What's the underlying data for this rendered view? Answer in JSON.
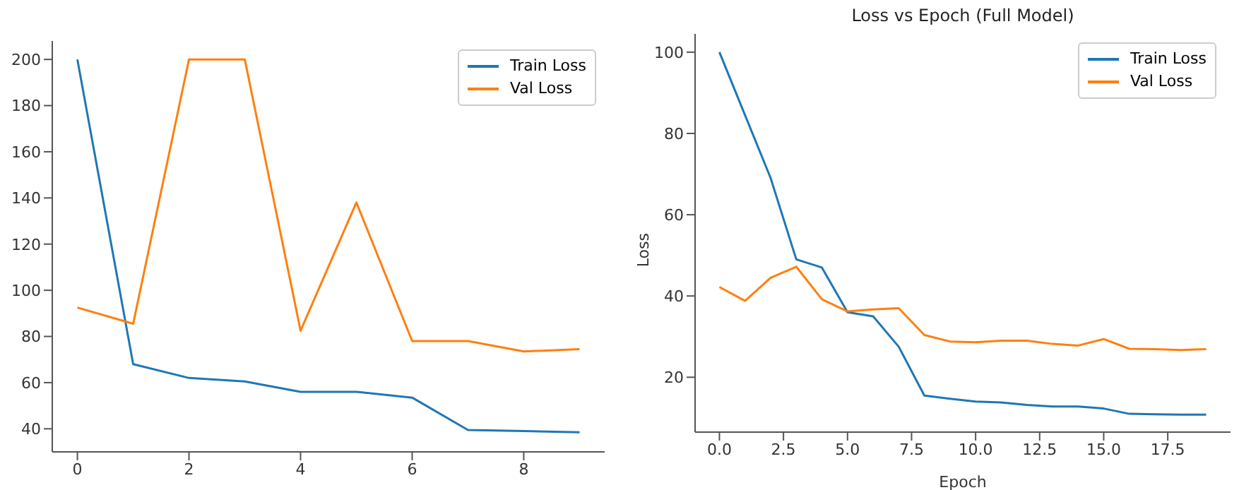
{
  "chart_data": [
    {
      "type": "line",
      "x": [
        0,
        1,
        2,
        3,
        4,
        5,
        6,
        7,
        8,
        9
      ],
      "xlim": [
        -0.45,
        9.45
      ],
      "xticks": [
        0,
        2,
        4,
        6,
        8
      ],
      "ylim": [
        30,
        208
      ],
      "yticks": [
        40,
        60,
        80,
        100,
        120,
        140,
        160,
        180,
        200
      ],
      "grid": false,
      "legend": "top right",
      "series": [
        {
          "name": "Train Loss",
          "color": "#1f77b4",
          "values": [
            200,
            68,
            62,
            60.5,
            56,
            56,
            53.5,
            39.5,
            39,
            38.5
          ]
        },
        {
          "name": "Val Loss",
          "color": "#ff7f0e",
          "values": [
            92.5,
            85.5,
            200,
            200,
            82.5,
            138,
            78,
            78,
            73.5,
            74.5
          ]
        }
      ]
    },
    {
      "type": "line",
      "title": "Loss vs Epoch (Full Model)",
      "xlabel": "Epoch",
      "ylabel": "Loss",
      "x": [
        0,
        1,
        2,
        3,
        4,
        5,
        6,
        7,
        8,
        9,
        10,
        11,
        12,
        13,
        14,
        15,
        16,
        17,
        18,
        19
      ],
      "xlim": [
        -0.95,
        19.95
      ],
      "xticks": [
        {
          "value": 0,
          "label": "0.0"
        },
        {
          "value": 2.5,
          "label": "2.5"
        },
        {
          "value": 5,
          "label": "5.0"
        },
        {
          "value": 7.5,
          "label": "7.5"
        },
        {
          "value": 10,
          "label": "10.0"
        },
        {
          "value": 12.5,
          "label": "12.5"
        },
        {
          "value": 15,
          "label": "15.0"
        },
        {
          "value": 17.5,
          "label": "17.5"
        }
      ],
      "ylim": [
        6.5,
        104.5
      ],
      "yticks": [
        20,
        40,
        60,
        80,
        100
      ],
      "grid": false,
      "legend": "top right",
      "series": [
        {
          "name": "Train Loss",
          "color": "#1f77b4",
          "values": [
            100,
            84.5,
            69,
            49,
            47,
            36,
            35,
            27.5,
            15.5,
            14.7,
            14,
            13.8,
            13.2,
            12.8,
            12.8,
            12.3,
            11,
            10.9,
            10.8,
            10.8
          ]
        },
        {
          "name": "Val Loss",
          "color": "#ff7f0e",
          "values": [
            42.2,
            38.8,
            44.5,
            47.2,
            39.2,
            36.2,
            36.7,
            37,
            30.4,
            28.8,
            28.6,
            29,
            29,
            28.2,
            27.8,
            29.4,
            27,
            26.9,
            26.7,
            26.9
          ]
        }
      ]
    }
  ]
}
